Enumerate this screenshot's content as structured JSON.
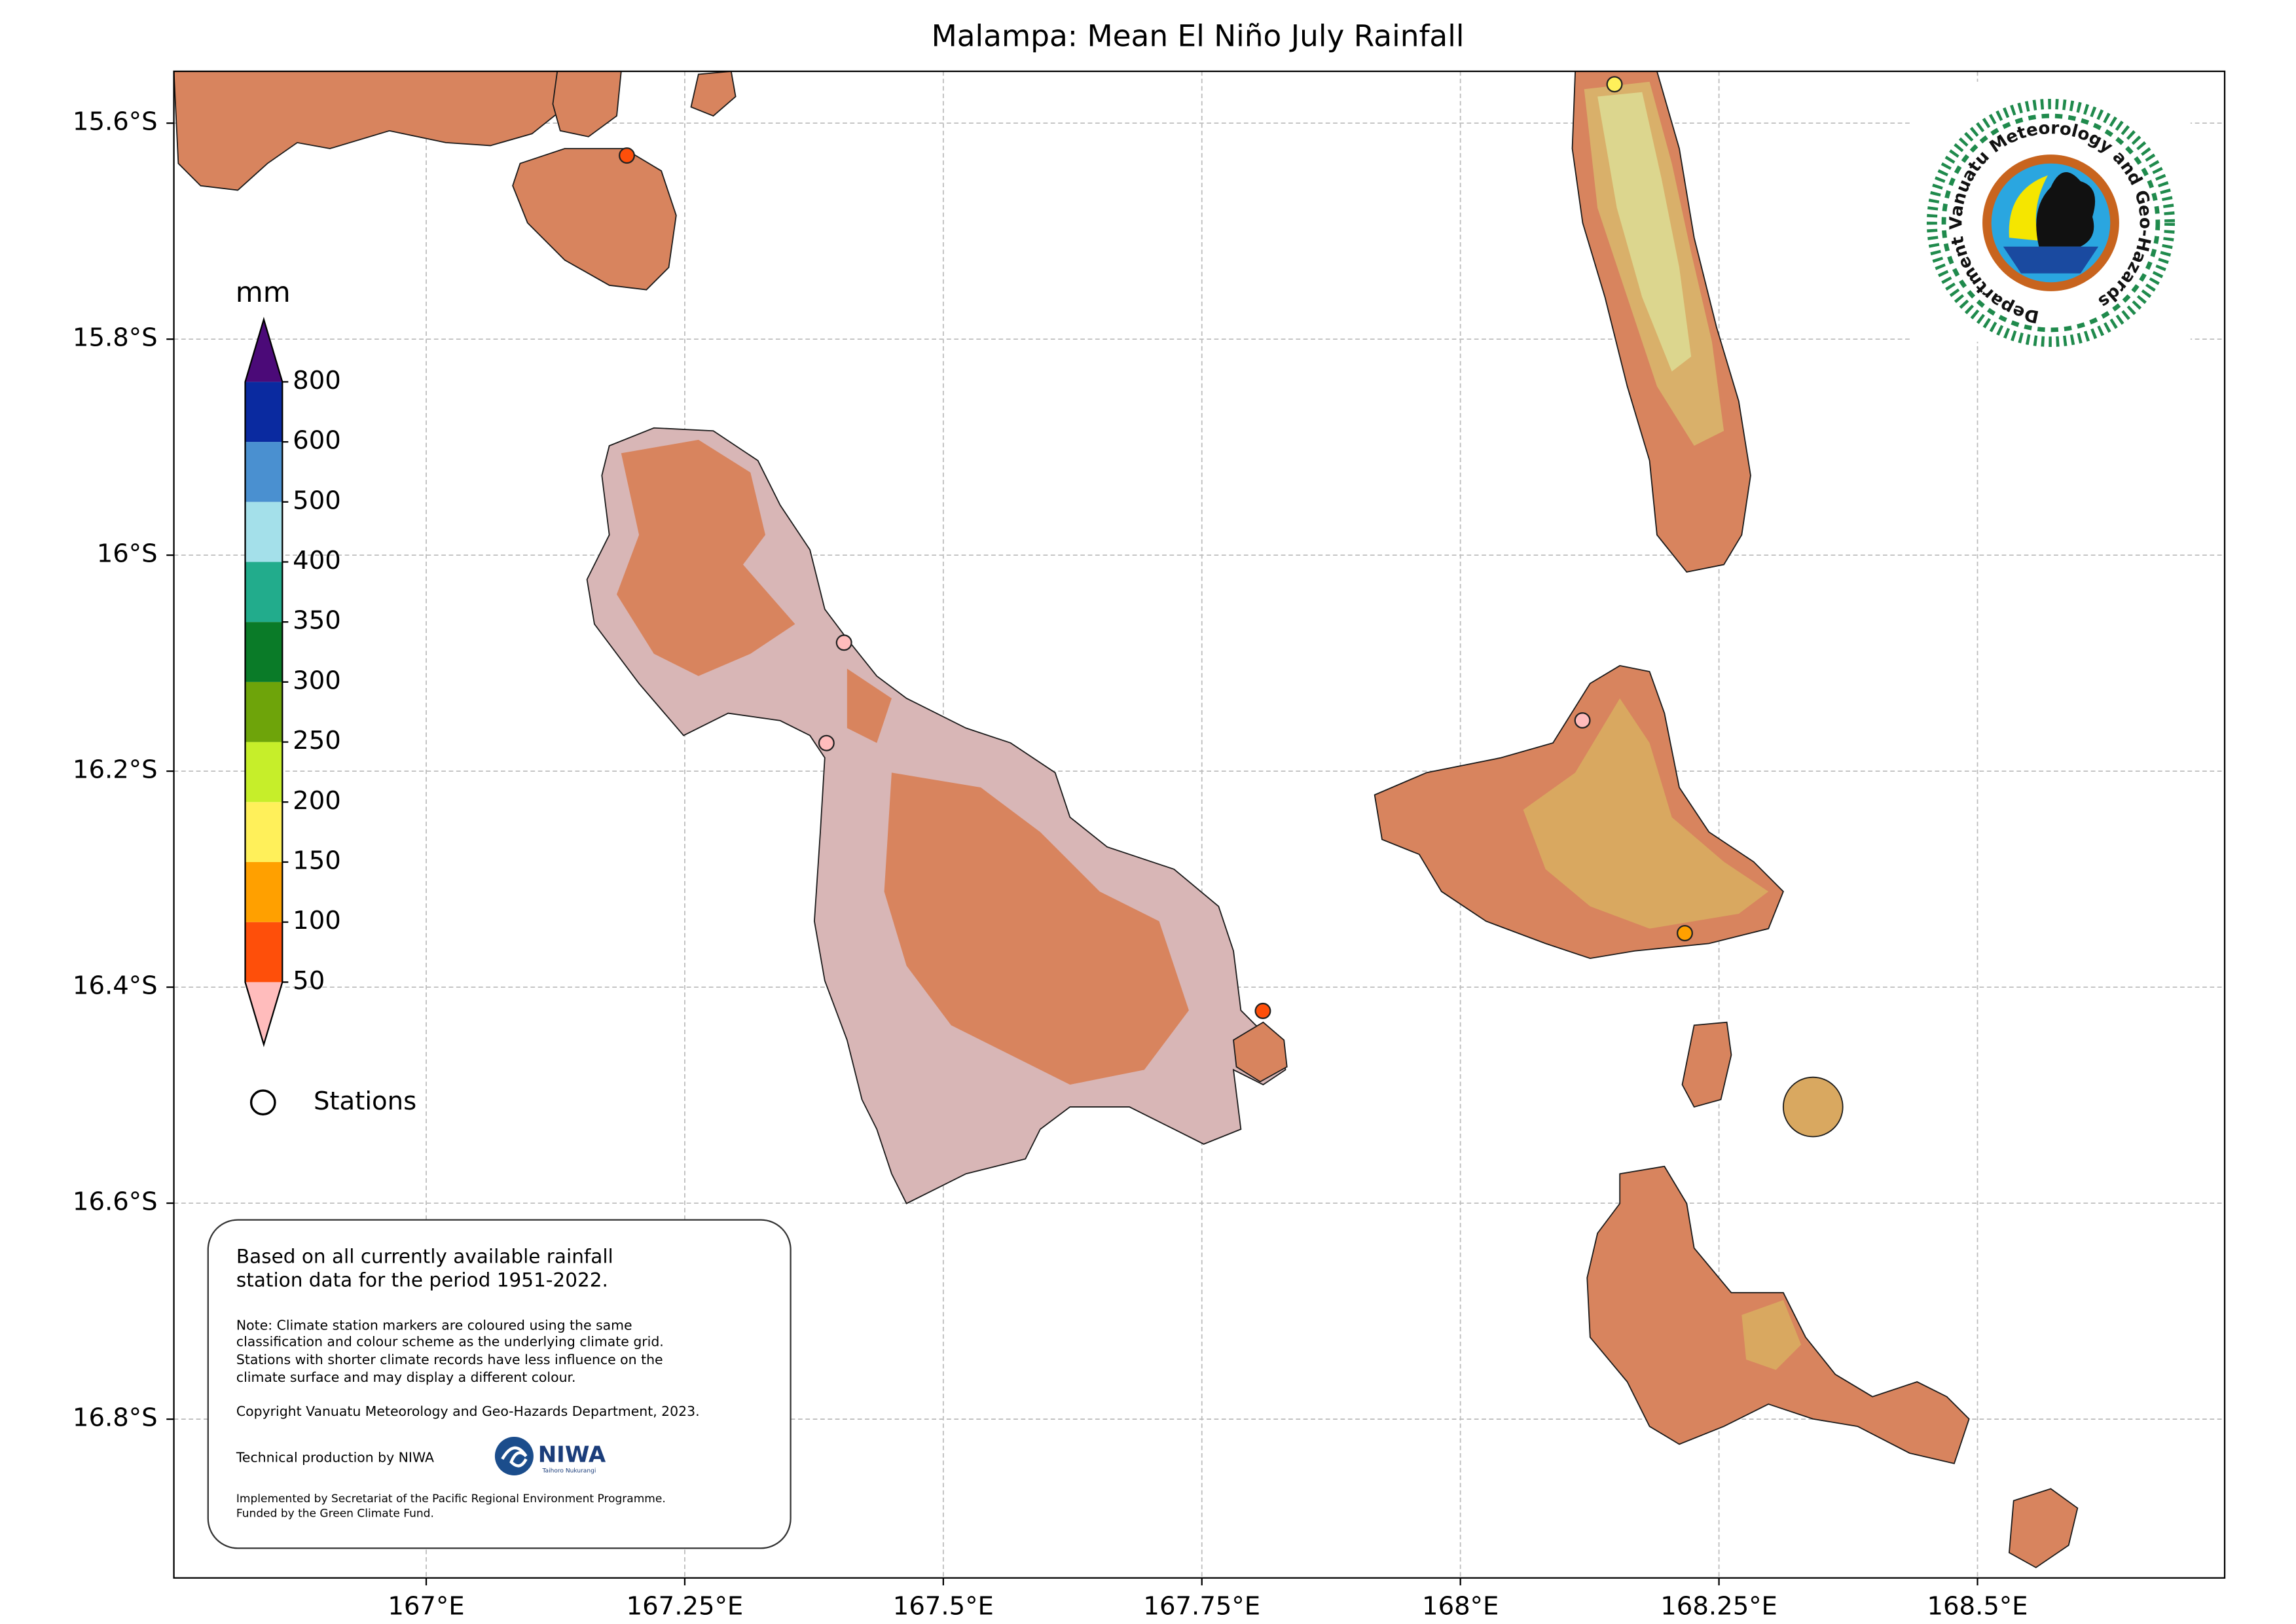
{
  "title": "Malampa: Mean El Niño July Rainfall",
  "map": {
    "type": "map",
    "xlim": [
      166.756,
      168.739
    ],
    "ylim": [
      -16.947,
      -15.552
    ],
    "xticks": [
      {
        "value": 167,
        "label": "167°E"
      },
      {
        "value": 167.25,
        "label": "167.25°E"
      },
      {
        "value": 167.5,
        "label": "167.5°E"
      },
      {
        "value": 167.75,
        "label": "167.75°E"
      },
      {
        "value": 168,
        "label": "168°E"
      },
      {
        "value": 168.25,
        "label": "168.25°E"
      },
      {
        "value": 168.5,
        "label": "168.5°E"
      }
    ],
    "yticks": [
      {
        "value": -15.6,
        "label": "15.6°S"
      },
      {
        "value": -15.8,
        "label": "15.8°S"
      },
      {
        "value": -16,
        "label": "16°S"
      },
      {
        "value": -16.2,
        "label": "16.2°S"
      },
      {
        "value": -16.4,
        "label": "16.4°S"
      },
      {
        "value": -16.6,
        "label": "16.6°S"
      },
      {
        "value": -16.8,
        "label": "16.8°S"
      }
    ],
    "grid": true,
    "colorbar": {
      "label": "mm",
      "levels": [
        50,
        100,
        150,
        200,
        250,
        300,
        350,
        400,
        500,
        600,
        800
      ],
      "colors": [
        "#fe4f0a",
        "#ffa000",
        "#fff05a",
        "#c6ee2a",
        "#6ea40a",
        "#0a7b28",
        "#22ac8c",
        "#a4e0ea",
        "#4a90d0",
        "#0a2aa0"
      ],
      "under_color": "#ffbcbc",
      "over_color": "#4b0a78"
    },
    "legend": {
      "label": "Stations"
    },
    "stations": [
      {
        "lon": 167.194,
        "lat": -15.63,
        "color": "#fe4f0a"
      },
      {
        "lon": 167.404,
        "lat": -16.081,
        "color": "#ffbcbc"
      },
      {
        "lon": 167.387,
        "lat": -16.174,
        "color": "#ffbcbc"
      },
      {
        "lon": 167.809,
        "lat": -16.422,
        "color": "#fe4f0a"
      },
      {
        "lon": 168.149,
        "lat": -15.564,
        "color": "#fff05a"
      },
      {
        "lon": 168.118,
        "lat": -16.153,
        "color": "#ffbcbc"
      },
      {
        "lon": 168.217,
        "lat": -16.35,
        "color": "#ffa000"
      }
    ]
  },
  "info_box": {
    "summary": [
      "Based on all currently available rainfall",
      "station data for the period 1951-2022."
    ],
    "note": [
      "Note: Climate station markers are coloured using the same",
      "classification and colour scheme as the underlying climate grid.",
      "Stations with shorter climate records have less influence on the",
      "climate surface and may display a different colour."
    ],
    "copyright": "Copyright Vanuatu Meteorology and Geo-Hazards Department, 2023.",
    "production": "Technical production by NIWA",
    "funding": [
      "Implemented by Secretariat of the Pacific Regional Environment Programme.",
      "Funded by the Green Climate Fund."
    ]
  },
  "niwa_logo": {
    "name": "NIWA",
    "subtitle": "Taihoro Nukurangi"
  },
  "vmgd_logo": {
    "text": "Department Vanuatu Meteorology and Geo-Hazards"
  }
}
